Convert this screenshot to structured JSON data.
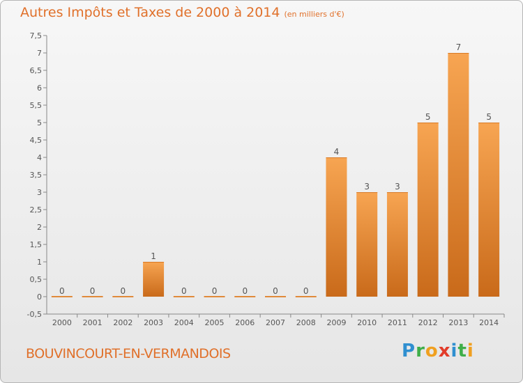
{
  "title": {
    "main": "Autres Impôts et Taxes de 2000 à 2014",
    "sub": "(en milliers d'€)"
  },
  "footer": {
    "location": "BOUVINCOURT-EN-VERMANDOIS",
    "logo_letters": [
      {
        "char": "P",
        "color": "#2f8fd0"
      },
      {
        "char": "r",
        "color": "#3fae49"
      },
      {
        "char": "o",
        "color": "#f0a020"
      },
      {
        "char": "x",
        "color": "#e23c2a"
      },
      {
        "char": "i",
        "color": "#2f8fd0"
      },
      {
        "char": "t",
        "color": "#3fae49"
      },
      {
        "char": "i",
        "color": "#f0a020"
      }
    ]
  },
  "chart_data": {
    "type": "bar",
    "title": "Autres Impôts et Taxes de 2000 à 2014",
    "subtitle": "(en milliers d'€)",
    "categories": [
      "2000",
      "2001",
      "2002",
      "2003",
      "2004",
      "2005",
      "2006",
      "2007",
      "2008",
      "2009",
      "2010",
      "2011",
      "2012",
      "2013",
      "2014"
    ],
    "values": [
      0,
      0,
      0,
      1,
      0,
      0,
      0,
      0,
      0,
      4,
      3,
      3,
      5,
      7,
      5
    ],
    "data_labels": [
      "0",
      "0",
      "0",
      "1",
      "0",
      "0",
      "0",
      "0",
      "0",
      "4",
      "3",
      "3",
      "5",
      "7",
      "5"
    ],
    "ylim": [
      -0.5,
      7.5
    ],
    "yticks": [
      -0.5,
      0,
      0.5,
      1,
      1.5,
      2,
      2.5,
      3,
      3.5,
      4,
      4.5,
      5,
      5.5,
      6,
      6.5,
      7,
      7.5
    ],
    "ytick_labels": [
      "-0,5",
      "0",
      "0,5",
      "1",
      "1,5",
      "2",
      "2,5",
      "3",
      "3,5",
      "4",
      "4,5",
      "5",
      "5,5",
      "6",
      "6,5",
      "7",
      "7,5"
    ],
    "grid": false,
    "bar_color_top": "#f7a552",
    "bar_color_bottom": "#c96a1a",
    "axis_color": "#888888",
    "text_color": "#555555"
  }
}
